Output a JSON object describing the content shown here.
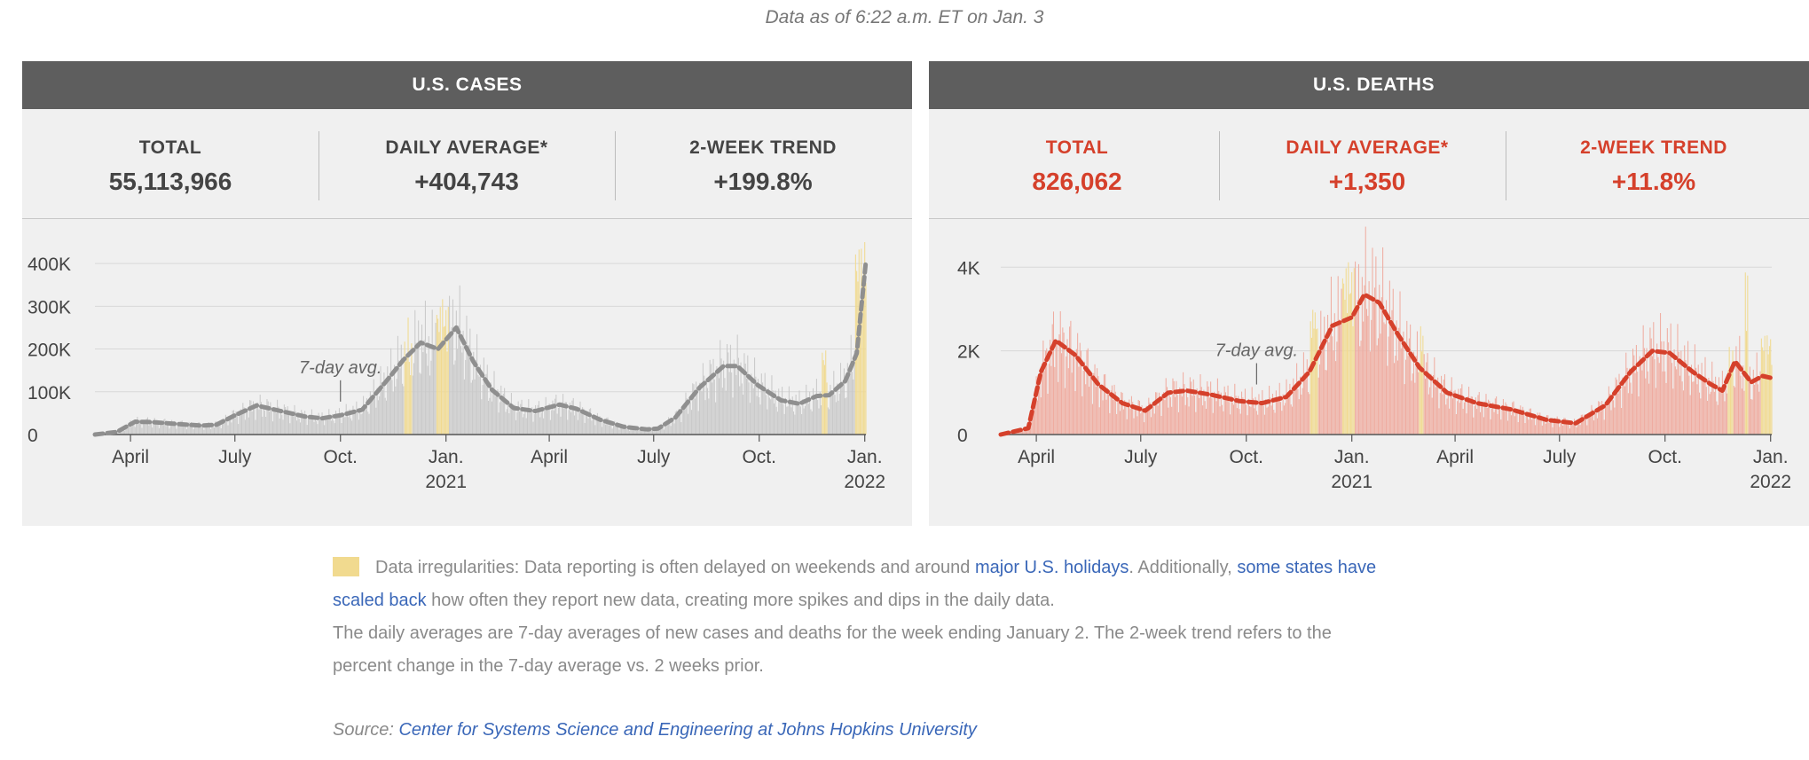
{
  "header": {
    "as_of": "Data as of 6:22 a.m. ET on Jan. 3"
  },
  "cases": {
    "title": "U.S. CASES",
    "stats": [
      {
        "label": "TOTAL",
        "value": "55,113,966"
      },
      {
        "label": "DAILY AVERAGE*",
        "value": "+404,743"
      },
      {
        "label": "2-WEEK TREND",
        "value": "+199.8%"
      }
    ]
  },
  "deaths": {
    "title": "U.S. DEATHS",
    "stats": [
      {
        "label": "TOTAL",
        "value": "826,062"
      },
      {
        "label": "DAILY AVERAGE*",
        "value": "+1,350"
      },
      {
        "label": "2-WEEK TREND",
        "value": "+11.8%"
      }
    ]
  },
  "notes": {
    "irregular_text": "Data irregularities: Data reporting is often delayed on weekends and around ",
    "link1": "major U.S. holidays",
    "mid_text": ". Additionally, ",
    "link2a": "some states have",
    "link2b": "scaled back",
    "after_text": " how often they report new data, creating more spikes and dips in the daily data.",
    "daily_avg_line1": "The daily averages are 7-day averages of new cases and deaths for the week ending January 2. The 2-week trend refers to the",
    "daily_avg_line2": "percent change in the 7-day average vs. 2 weeks prior.",
    "source_label": "Source: ",
    "source_link": "Center for Systems Science and Engineering at Johns Hopkins University"
  },
  "colors": {
    "cases_bar": "#c9c9c9",
    "cases_line": "#8f8f8f",
    "deaths_bar": "#efaca0",
    "deaths_line": "#d5402b",
    "irregular": "#f1da8f"
  },
  "chart_data": [
    {
      "type": "bar",
      "title": "U.S. CASES",
      "x_range": [
        "2020-03-01",
        "2022-01-02"
      ],
      "ylim": [
        0,
        450000
      ],
      "yticks": [
        0,
        100000,
        200000,
        300000,
        400000
      ],
      "ytick_labels": [
        "0",
        "100K",
        "200K",
        "300K",
        "400K"
      ],
      "xticks": [
        {
          "date": "2020-04-01",
          "label": "April"
        },
        {
          "date": "2020-07-01",
          "label": "July"
        },
        {
          "date": "2020-10-01",
          "label": "Oct."
        },
        {
          "date": "2021-01-01",
          "label": "Jan.",
          "sub": "2021"
        },
        {
          "date": "2021-04-01",
          "label": "April"
        },
        {
          "date": "2021-07-01",
          "label": "July"
        },
        {
          "date": "2021-10-01",
          "label": "Oct."
        },
        {
          "date": "2022-01-01",
          "label": "Jan.",
          "sub": "2022"
        }
      ],
      "annotation": {
        "text": "7-day avg.",
        "date": "2020-10-01",
        "value": 48000
      },
      "series": [
        {
          "name": "7-day avg.",
          "points": [
            [
              "2020-03-01",
              0
            ],
            [
              "2020-03-20",
              6000
            ],
            [
              "2020-04-05",
              30000
            ],
            [
              "2020-04-20",
              29000
            ],
            [
              "2020-05-10",
              25000
            ],
            [
              "2020-06-01",
              21000
            ],
            [
              "2020-06-15",
              23000
            ],
            [
              "2020-07-01",
              45000
            ],
            [
              "2020-07-20",
              68000
            ],
            [
              "2020-08-10",
              55000
            ],
            [
              "2020-08-31",
              42000
            ],
            [
              "2020-09-15",
              38000
            ],
            [
              "2020-10-01",
              45000
            ],
            [
              "2020-10-20",
              58000
            ],
            [
              "2020-11-10",
              125000
            ],
            [
              "2020-11-25",
              175000
            ],
            [
              "2020-12-10",
              215000
            ],
            [
              "2020-12-25",
              200000
            ],
            [
              "2021-01-10",
              250000
            ],
            [
              "2021-01-25",
              170000
            ],
            [
              "2021-02-10",
              105000
            ],
            [
              "2021-03-01",
              62000
            ],
            [
              "2021-03-20",
              55000
            ],
            [
              "2021-04-10",
              70000
            ],
            [
              "2021-04-25",
              60000
            ],
            [
              "2021-05-15",
              35000
            ],
            [
              "2021-06-05",
              18000
            ],
            [
              "2021-06-25",
              12000
            ],
            [
              "2021-07-05",
              14000
            ],
            [
              "2021-07-20",
              40000
            ],
            [
              "2021-08-10",
              110000
            ],
            [
              "2021-08-31",
              160000
            ],
            [
              "2021-09-12",
              160000
            ],
            [
              "2021-09-30",
              115000
            ],
            [
              "2021-10-20",
              80000
            ],
            [
              "2021-11-05",
              72000
            ],
            [
              "2021-11-20",
              90000
            ],
            [
              "2021-12-01",
              92000
            ],
            [
              "2021-12-15",
              125000
            ],
            [
              "2021-12-25",
              190000
            ],
            [
              "2022-01-02",
              405000
            ]
          ]
        }
      ],
      "irregular_periods": [
        [
          "2020-11-26",
          "2020-12-02"
        ],
        [
          "2020-12-24",
          "2021-01-03"
        ],
        [
          "2021-11-25",
          "2021-11-29"
        ],
        [
          "2021-12-24",
          "2022-01-02"
        ]
      ],
      "irregular_peaks": [
        160000,
        300000,
        200000,
        440000
      ]
    },
    {
      "type": "bar",
      "title": "U.S. DEATHS",
      "x_range": [
        "2020-03-01",
        "2022-01-02"
      ],
      "ylim": [
        0,
        4600
      ],
      "yticks": [
        0,
        2000,
        4000
      ],
      "ytick_labels": [
        "0",
        "2K",
        "4K"
      ],
      "xticks": [
        {
          "date": "2020-04-01",
          "label": "April"
        },
        {
          "date": "2020-07-01",
          "label": "July"
        },
        {
          "date": "2020-10-01",
          "label": "Oct."
        },
        {
          "date": "2021-01-01",
          "label": "Jan.",
          "sub": "2021"
        },
        {
          "date": "2021-04-01",
          "label": "April"
        },
        {
          "date": "2021-07-01",
          "label": "July"
        },
        {
          "date": "2021-10-01",
          "label": "Oct."
        },
        {
          "date": "2022-01-01",
          "label": "Jan.",
          "sub": "2022"
        }
      ],
      "annotation": {
        "text": "7-day avg.",
        "date": "2020-10-10",
        "value": 900
      },
      "series": [
        {
          "name": "7-day avg.",
          "points": [
            [
              "2020-03-01",
              0
            ],
            [
              "2020-03-25",
              150
            ],
            [
              "2020-04-05",
              1500
            ],
            [
              "2020-04-18",
              2250
            ],
            [
              "2020-05-05",
              1900
            ],
            [
              "2020-05-25",
              1200
            ],
            [
              "2020-06-15",
              750
            ],
            [
              "2020-07-05",
              570
            ],
            [
              "2020-07-25",
              1000
            ],
            [
              "2020-08-10",
              1050
            ],
            [
              "2020-09-01",
              950
            ],
            [
              "2020-09-25",
              800
            ],
            [
              "2020-10-15",
              750
            ],
            [
              "2020-11-05",
              900
            ],
            [
              "2020-11-25",
              1500
            ],
            [
              "2020-12-15",
              2600
            ],
            [
              "2021-01-01",
              2800
            ],
            [
              "2021-01-12",
              3350
            ],
            [
              "2021-01-25",
              3150
            ],
            [
              "2021-02-10",
              2400
            ],
            [
              "2021-03-01",
              1600
            ],
            [
              "2021-03-25",
              1000
            ],
            [
              "2021-04-20",
              750
            ],
            [
              "2021-05-20",
              600
            ],
            [
              "2021-06-20",
              350
            ],
            [
              "2021-07-15",
              270
            ],
            [
              "2021-08-10",
              700
            ],
            [
              "2021-09-01",
              1500
            ],
            [
              "2021-09-20",
              2000
            ],
            [
              "2021-10-05",
              1950
            ],
            [
              "2021-10-25",
              1500
            ],
            [
              "2021-11-10",
              1200
            ],
            [
              "2021-11-20",
              1050
            ],
            [
              "2021-12-01",
              1750
            ],
            [
              "2021-12-15",
              1250
            ],
            [
              "2021-12-25",
              1400
            ],
            [
              "2022-01-02",
              1350
            ]
          ]
        }
      ],
      "irregular_periods": [
        [
          "2020-11-26",
          "2020-12-02"
        ],
        [
          "2020-12-24",
          "2021-01-03"
        ],
        [
          "2021-03-01",
          "2021-03-04"
        ],
        [
          "2021-11-25",
          "2021-11-29"
        ],
        [
          "2021-12-10",
          "2021-12-12"
        ],
        [
          "2021-12-24",
          "2022-01-02"
        ]
      ],
      "irregular_peaks": [
        3000,
        4000,
        2600,
        1600,
        3900,
        2400
      ]
    }
  ]
}
